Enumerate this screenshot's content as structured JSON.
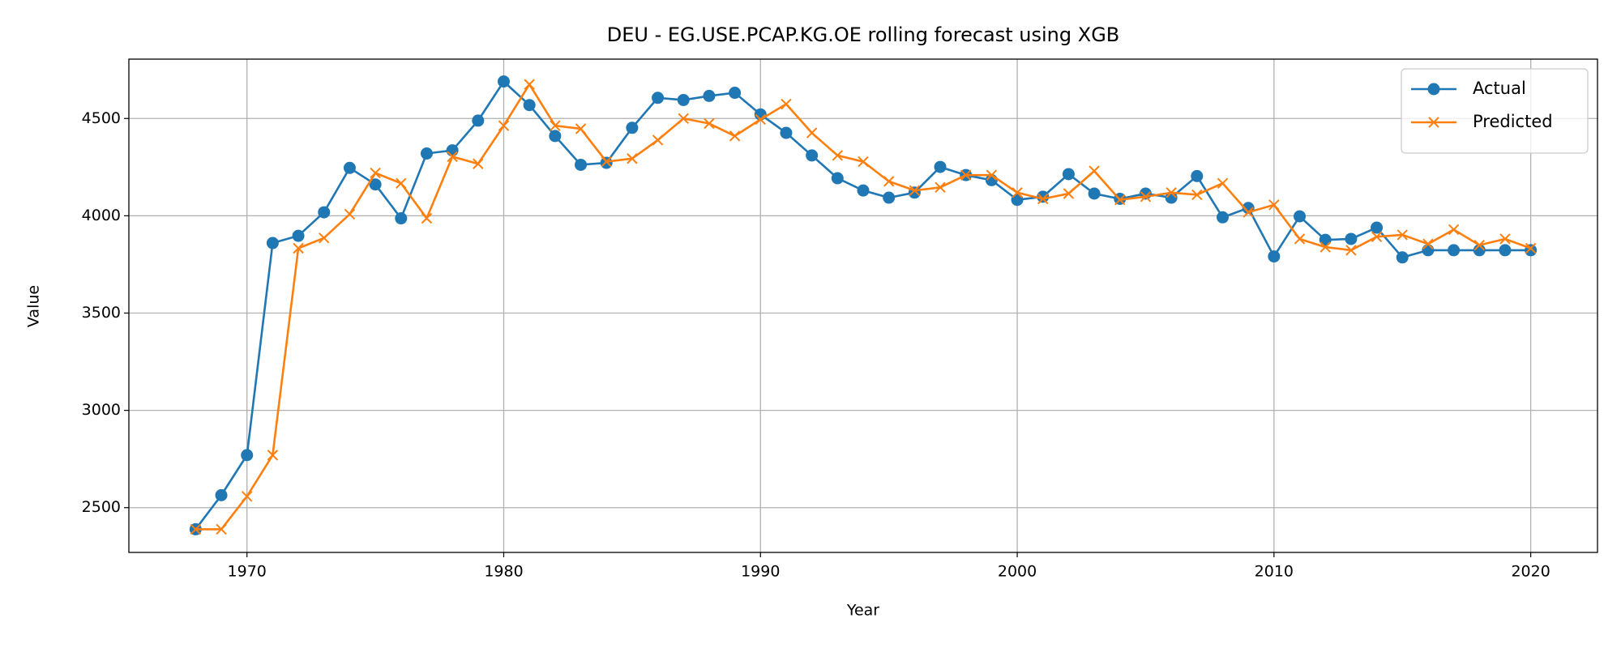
{
  "chart_data": {
    "type": "line",
    "title": "DEU - EG.USE.PCAP.KG.OE rolling forecast using XGB",
    "x_label": "Year",
    "y_label": "Value",
    "x": [
      1968,
      1969,
      1970,
      1971,
      1972,
      1973,
      1974,
      1975,
      1976,
      1977,
      1978,
      1979,
      1980,
      1981,
      1982,
      1983,
      1984,
      1985,
      1986,
      1987,
      1988,
      1989,
      1990,
      1991,
      1992,
      1993,
      1994,
      1995,
      1996,
      1997,
      1998,
      1999,
      2000,
      2001,
      2002,
      2003,
      2004,
      2005,
      2006,
      2007,
      2008,
      2009,
      2010,
      2011,
      2012,
      2013,
      2014,
      2015,
      2016,
      2017,
      2018,
      2019,
      2020
    ],
    "series": [
      {
        "name": "Actual",
        "color": "#1f77b4",
        "marker": "o",
        "values": [
          2389,
          2564,
          2770,
          3860,
          3897,
          4018,
          4246,
          4161,
          3987,
          4320,
          4336,
          4489,
          4690,
          4569,
          4410,
          4262,
          4272,
          4452,
          4606,
          4595,
          4616,
          4632,
          4521,
          4426,
          4310,
          4193,
          4130,
          4093,
          4119,
          4251,
          4209,
          4183,
          4082,
          4098,
          4214,
          4114,
          4087,
          4114,
          4093,
          4204,
          3992,
          4040,
          3791,
          3997,
          3876,
          3881,
          3939,
          3786,
          3823,
          3823,
          3823,
          3823,
          3823
        ]
      },
      {
        "name": "Predicted",
        "color": "#ff7f0e",
        "marker": "x",
        "values": [
          2389,
          2389,
          2558,
          2770,
          3833,
          3886,
          4008,
          4220,
          4167,
          3987,
          4304,
          4267,
          4463,
          4675,
          4463,
          4447,
          4278,
          4294,
          4389,
          4500,
          4474,
          4410,
          4495,
          4574,
          4426,
          4310,
          4278,
          4177,
          4130,
          4146,
          4209,
          4209,
          4119,
          4087,
          4114,
          4230,
          4082,
          4098,
          4119,
          4108,
          4167,
          4018,
          4056,
          3881,
          3839,
          3823,
          3892,
          3902,
          3855,
          3929,
          3849,
          3881,
          3833
        ]
      }
    ],
    "xlim": [
      1965.4,
      2022.6
    ],
    "xticks": [
      1970,
      1980,
      1990,
      2000,
      2010,
      2020
    ],
    "ylim": [
      2270,
      4805
    ],
    "yticks": [
      2500,
      3000,
      3500,
      4000,
      4500
    ],
    "grid": true,
    "legend": "upper right"
  }
}
